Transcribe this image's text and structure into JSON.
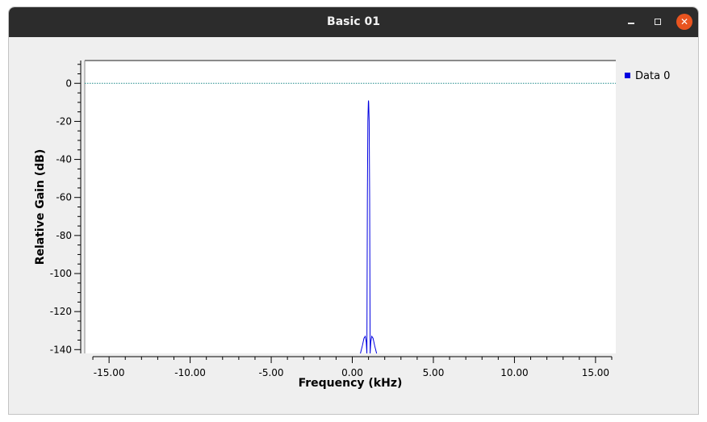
{
  "window": {
    "title": "Basic 01",
    "minimize_icon": "minimize-icon",
    "maximize_icon": "maximize-icon",
    "close_icon": "close-icon"
  },
  "chart_data": {
    "type": "line",
    "title": "",
    "xlabel": "Frequency (kHz)",
    "ylabel": "Relative Gain (dB)",
    "xlim": [
      -16.5,
      16.25
    ],
    "ylim": [
      -142,
      12
    ],
    "x_ticks": [
      -15,
      -10,
      -5,
      0,
      5,
      10,
      15
    ],
    "x_tick_labels": [
      "-15.00",
      "-10.00",
      "-5.00",
      "0.00",
      "5.00",
      "10.00",
      "15.00"
    ],
    "y_ticks": [
      0,
      -20,
      -40,
      -60,
      -80,
      -100,
      -120,
      -140
    ],
    "y_tick_labels": [
      "0",
      "-20",
      "-40",
      "-60",
      "-80",
      "-100",
      "-120",
      "-140"
    ],
    "grid": false,
    "legend_position": "right",
    "reference_line": {
      "y": 0,
      "style": "dotted",
      "color": "#1e8a8a"
    },
    "series": [
      {
        "name": "Data 0",
        "color": "#0000e0",
        "x": [
          0.5,
          0.62,
          0.72,
          0.8,
          0.86,
          0.9,
          0.93,
          0.96,
          0.99,
          1.0,
          1.01,
          1.04,
          1.07,
          1.1,
          1.14,
          1.2,
          1.28,
          1.38,
          1.5
        ],
        "y": [
          -142,
          -138,
          -134,
          -133,
          -136,
          -142,
          -60,
          -20,
          -10,
          -9,
          -10,
          -20,
          -60,
          -142,
          -136,
          -133,
          -134,
          -138,
          -142
        ]
      }
    ]
  }
}
